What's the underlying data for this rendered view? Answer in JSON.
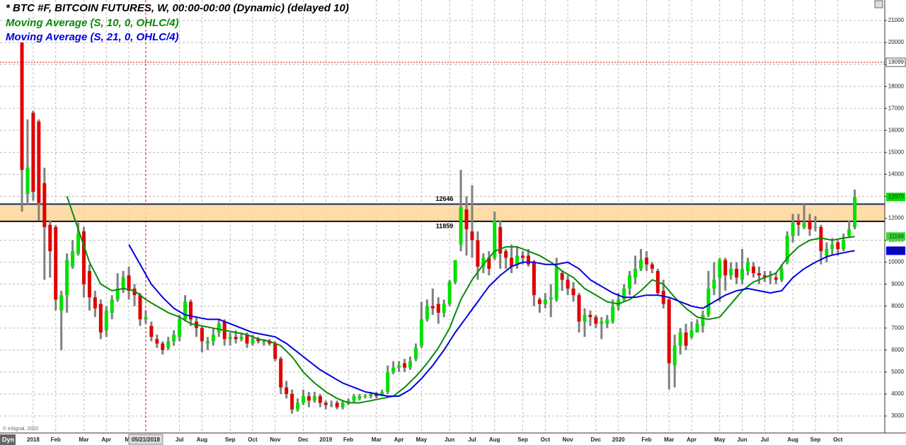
{
  "chart_data": {
    "type": "candlestick",
    "title": "* BTC #F, BITCOIN FUTURES, W, 00:00-00:00 (Dynamic) (delayed 10)",
    "mode_label": "Dyn",
    "watermark": "© eSignal, 2020",
    "rising_color": "#00e000",
    "falling_color": "#e00000",
    "wick_color": "#808080",
    "grid": true,
    "ylim": [
      2227,
      21934
    ],
    "yticks": [
      3000,
      4000,
      5000,
      6000,
      7000,
      8000,
      9000,
      10000,
      11000,
      12000,
      13000,
      14000,
      15000,
      16000,
      17000,
      18000,
      19000,
      20000,
      21000
    ],
    "zone": [
      12646,
      11859
    ],
    "zone_color": "#ffd699",
    "marker_line": 19099,
    "marker_category": "05/21/2018",
    "marker_color": "#e00000",
    "categories": [
      null,
      null,
      "2018",
      null,
      null,
      null,
      "Feb",
      null,
      null,
      null,
      null,
      "Mar",
      null,
      null,
      null,
      "Apr",
      null,
      null,
      null,
      "Ma",
      null,
      null,
      "05/21/2018",
      null,
      null,
      null,
      null,
      null,
      "Jul",
      null,
      null,
      null,
      "Aug",
      null,
      null,
      null,
      null,
      "Sep",
      null,
      null,
      null,
      "Oct",
      null,
      null,
      null,
      "Nov",
      null,
      null,
      null,
      null,
      "Dec",
      null,
      null,
      null,
      "2019",
      null,
      null,
      null,
      "Feb",
      null,
      null,
      null,
      null,
      "Mar",
      null,
      null,
      null,
      "Apr",
      null,
      null,
      null,
      "May",
      null,
      null,
      null,
      null,
      "Jun",
      null,
      null,
      null,
      "Jul",
      null,
      null,
      null,
      "Aug",
      null,
      null,
      null,
      null,
      "Sep",
      null,
      null,
      null,
      "Oct",
      null,
      null,
      null,
      "Nov",
      null,
      null,
      null,
      null,
      "Dec",
      null,
      null,
      null,
      "2020",
      null,
      null,
      null,
      null,
      "Feb",
      null,
      null,
      null,
      "Mar",
      null,
      null,
      null,
      "Apr",
      null,
      null,
      null,
      null,
      "May",
      null,
      null,
      null,
      "Jun",
      null,
      null,
      null,
      "Jul",
      null,
      null,
      null,
      null,
      "Aug",
      null,
      null,
      null,
      "Sep",
      null,
      null,
      null,
      "Oct",
      null,
      null,
      null
    ],
    "candles": [
      [
        20000,
        20000,
        12300,
        14200
      ],
      [
        13100,
        16500,
        12600,
        14300
      ],
      [
        16800,
        16900,
        12800,
        13200
      ],
      [
        16400,
        16500,
        11900,
        12700
      ],
      [
        13600,
        14300,
        9200,
        11600
      ],
      [
        11700,
        11900,
        9300,
        10500
      ],
      [
        11600,
        11700,
        7800,
        8300
      ],
      [
        7800,
        8700,
        6000,
        8500
      ],
      [
        8500,
        10400,
        7700,
        10100
      ],
      [
        9800,
        11000,
        9700,
        10500
      ],
      [
        10400,
        11800,
        10300,
        11300
      ],
      [
        11400,
        11600,
        8400,
        9000
      ],
      [
        9600,
        9900,
        7800,
        8400
      ],
      [
        8400,
        8700,
        7500,
        7900
      ],
      [
        8100,
        8300,
        6500,
        6800
      ],
      [
        6900,
        8000,
        6600,
        7800
      ],
      [
        7700,
        8500,
        7400,
        8300
      ],
      [
        8300,
        9500,
        8200,
        8800
      ],
      [
        8800,
        9600,
        8600,
        9300
      ],
      [
        9400,
        9800,
        8300,
        8700
      ],
      [
        8800,
        9000,
        8000,
        8500
      ],
      [
        8500,
        8600,
        7100,
        7400
      ],
      [
        7400,
        7800,
        7200,
        7500
      ],
      [
        7100,
        7300,
        6400,
        6600
      ],
      [
        6500,
        6700,
        6100,
        6300
      ],
      [
        6300,
        6400,
        5800,
        6000
      ],
      [
        6100,
        6600,
        6000,
        6400
      ],
      [
        6400,
        6900,
        6200,
        6700
      ],
      [
        6600,
        7600,
        6400,
        7400
      ],
      [
        7400,
        8500,
        7300,
        8200
      ],
      [
        8200,
        8300,
        7100,
        7400
      ],
      [
        7300,
        7500,
        6600,
        7000
      ],
      [
        7000,
        7100,
        5900,
        6400
      ],
      [
        6300,
        6600,
        6000,
        6400
      ],
      [
        6400,
        7000,
        6200,
        6700
      ],
      [
        6800,
        7400,
        6600,
        7200
      ],
      [
        7300,
        7400,
        6200,
        6500
      ],
      [
        6500,
        6800,
        6200,
        6600
      ],
      [
        6600,
        6900,
        6300,
        6500
      ],
      [
        6500,
        6800,
        6400,
        6600
      ],
      [
        6700,
        6800,
        6100,
        6300
      ],
      [
        6300,
        6700,
        6200,
        6500
      ],
      [
        6500,
        6600,
        6300,
        6400
      ],
      [
        6400,
        6500,
        6200,
        6400
      ],
      [
        6400,
        6500,
        6200,
        6300
      ],
      [
        6300,
        6400,
        5500,
        5600
      ],
      [
        5600,
        5700,
        4000,
        4300
      ],
      [
        4300,
        4600,
        3800,
        4000
      ],
      [
        4000,
        4200,
        3100,
        3300
      ],
      [
        3300,
        3800,
        3200,
        3600
      ],
      [
        3600,
        4200,
        3500,
        3900
      ],
      [
        3900,
        4100,
        3400,
        3700
      ],
      [
        3700,
        4100,
        3600,
        3900
      ],
      [
        3900,
        4000,
        3400,
        3600
      ],
      [
        3600,
        3700,
        3300,
        3500
      ],
      [
        3500,
        3700,
        3400,
        3500
      ],
      [
        3600,
        3700,
        3300,
        3400
      ],
      [
        3400,
        3700,
        3300,
        3600
      ],
      [
        3600,
        3800,
        3500,
        3700
      ],
      [
        3700,
        4000,
        3600,
        3900
      ],
      [
        3800,
        4000,
        3700,
        3900
      ],
      [
        3900,
        4000,
        3800,
        3900
      ],
      [
        3900,
        4100,
        3800,
        4000
      ],
      [
        4000,
        4100,
        3800,
        3900
      ],
      [
        3900,
        4200,
        3900,
        4100
      ],
      [
        4100,
        5300,
        4000,
        5000
      ],
      [
        5000,
        5500,
        4900,
        5200
      ],
      [
        5200,
        5500,
        5000,
        5300
      ],
      [
        5400,
        5600,
        5000,
        5200
      ],
      [
        5200,
        5700,
        5100,
        5500
      ],
      [
        5600,
        6300,
        5500,
        6100
      ],
      [
        6200,
        8200,
        6100,
        7400
      ],
      [
        7400,
        8300,
        7300,
        8000
      ],
      [
        8000,
        8800,
        7600,
        7900
      ],
      [
        8100,
        8400,
        7200,
        7700
      ],
      [
        7700,
        8300,
        7500,
        8100
      ],
      [
        8100,
        9200,
        8000,
        9100
      ],
      [
        9100,
        10100,
        9000,
        10100
      ],
      [
        10800,
        14200,
        10500,
        12500
      ],
      [
        12400,
        13000,
        10300,
        11500
      ],
      [
        11400,
        13500,
        10200,
        11000
      ],
      [
        11000,
        11400,
        9200,
        9800
      ],
      [
        9800,
        10400,
        9500,
        10200
      ],
      [
        10200,
        10500,
        9400,
        9700
      ],
      [
        10200,
        12300,
        10100,
        11900
      ],
      [
        11600,
        11900,
        9700,
        10400
      ],
      [
        10500,
        10600,
        9700,
        10200
      ],
      [
        10200,
        10800,
        9500,
        9800
      ],
      [
        9900,
        10700,
        9700,
        10300
      ],
      [
        10300,
        10500,
        9900,
        10200
      ],
      [
        10300,
        10600,
        9800,
        9900
      ],
      [
        10000,
        10100,
        8000,
        8500
      ],
      [
        8300,
        8400,
        7700,
        8100
      ],
      [
        8100,
        8600,
        7900,
        8300
      ],
      [
        8300,
        9000,
        7500,
        8400
      ],
      [
        8300,
        10200,
        8200,
        9800
      ],
      [
        9500,
        9600,
        8700,
        9200
      ],
      [
        9200,
        9400,
        8500,
        8800
      ],
      [
        8800,
        9100,
        8200,
        8500
      ],
      [
        8500,
        8600,
        6800,
        7300
      ],
      [
        7300,
        7900,
        6600,
        7600
      ],
      [
        7600,
        7800,
        7100,
        7500
      ],
      [
        7500,
        7600,
        7000,
        7200
      ],
      [
        7200,
        7500,
        6500,
        7300
      ],
      [
        7200,
        7600,
        7000,
        7400
      ],
      [
        7300,
        8300,
        7200,
        8000
      ],
      [
        8000,
        8600,
        7800,
        8300
      ],
      [
        8300,
        9000,
        8200,
        8800
      ],
      [
        8800,
        9600,
        8500,
        9400
      ],
      [
        9300,
        10300,
        9000,
        9700
      ],
      [
        9700,
        10600,
        9600,
        10100
      ],
      [
        10200,
        10500,
        9600,
        9900
      ],
      [
        9900,
        10000,
        9500,
        9700
      ],
      [
        9600,
        9700,
        8500,
        8600
      ],
      [
        8700,
        9200,
        7900,
        8100
      ],
      [
        8300,
        8400,
        4200,
        5400
      ],
      [
        5300,
        6700,
        4300,
        6200
      ],
      [
        6200,
        7000,
        5800,
        6800
      ],
      [
        6800,
        7200,
        6000,
        6200
      ],
      [
        6600,
        7300,
        6500,
        6900
      ],
      [
        6800,
        7400,
        6900,
        7200
      ],
      [
        7100,
        7800,
        6800,
        7600
      ],
      [
        7600,
        9600,
        7500,
        8800
      ],
      [
        8800,
        10000,
        8500,
        9200
      ],
      [
        9300,
        10200,
        8200,
        10100
      ],
      [
        10100,
        10200,
        8700,
        9400
      ],
      [
        9400,
        10000,
        9200,
        9700
      ],
      [
        9700,
        10000,
        9000,
        9300
      ],
      [
        9200,
        10600,
        9000,
        9700
      ],
      [
        9600,
        10200,
        9400,
        10000
      ],
      [
        9800,
        10000,
        9300,
        9500
      ],
      [
        9500,
        9800,
        9000,
        9400
      ],
      [
        9400,
        9600,
        9100,
        9300
      ],
      [
        9300,
        9600,
        9000,
        9300
      ],
      [
        9300,
        9500,
        9000,
        9200
      ],
      [
        9200,
        9900,
        9100,
        9700
      ],
      [
        10000,
        11400,
        9900,
        11200
      ],
      [
        11200,
        12200,
        10900,
        11800
      ],
      [
        11900,
        12200,
        11200,
        11700
      ],
      [
        11600,
        12700,
        11500,
        11800
      ],
      [
        11900,
        12200,
        11200,
        11500
      ],
      [
        11600,
        12100,
        11400,
        11600
      ],
      [
        11600,
        11700,
        9900,
        10500
      ],
      [
        10300,
        10900,
        10000,
        10600
      ],
      [
        10600,
        11100,
        10300,
        10800
      ],
      [
        10900,
        11000,
        10300,
        10600
      ],
      [
        10600,
        11300,
        10500,
        11000
      ],
      [
        11200,
        11900,
        11100,
        11500
      ],
      [
        11600,
        13300,
        11500,
        12970
      ]
    ],
    "series": [
      {
        "name": "Moving Average (S, 10, 0, OHLC/4)",
        "color": "#0a8a0a",
        "label_bg": "#33dd33",
        "values": [
          null,
          null,
          null,
          null,
          null,
          null,
          null,
          null,
          13000,
          12250,
          11500,
          10750,
          10000,
          9500,
          9000,
          8850,
          8700,
          8750,
          8800,
          8750,
          8700,
          8500,
          8300,
          8150,
          8000,
          7850,
          7700,
          7600,
          7500,
          7350,
          7200,
          7150,
          7100,
          7050,
          7000,
          6950,
          6900,
          6850,
          6800,
          6750,
          6700,
          6600,
          6500,
          6450,
          6400,
          6300,
          6200,
          5950,
          5700,
          5350,
          5000,
          4750,
          4500,
          4300,
          4100,
          3950,
          3800,
          3700,
          3600,
          3600,
          3600,
          3650,
          3700,
          3750,
          3800,
          3850,
          3900,
          4100,
          4300,
          4550,
          4800,
          5100,
          5400,
          5750,
          6100,
          6550,
          7000,
          7650,
          8300,
          8750,
          9200,
          9550,
          9900,
          10200,
          10500,
          10600,
          10700,
          10700,
          10700,
          10600,
          10500,
          10400,
          10300,
          10150,
          10000,
          9800,
          9600,
          9450,
          9300,
          9050,
          8800,
          8650,
          8500,
          8350,
          8200,
          8150,
          8100,
          8200,
          8300,
          8500,
          8700,
          8950,
          9200,
          9100,
          9000,
          8700,
          8400,
          8150,
          7900,
          7700,
          7500,
          7450,
          7400,
          7450,
          7500,
          7800,
          8100,
          8400,
          8700,
          8900,
          9100,
          9200,
          9300,
          9400,
          9500,
          9850,
          10200,
          10450,
          10700,
          10850,
          11000,
          11050,
          11100,
          11050,
          11000,
          11050,
          11100,
          11130,
          11169
        ]
      },
      {
        "name": "Moving Average (S, 21, 0, OHLC/4)",
        "color": "#0000dd",
        "label_bg": "#0000dd",
        "values": [
          null,
          null,
          null,
          null,
          null,
          null,
          null,
          null,
          null,
          null,
          null,
          null,
          null,
          null,
          null,
          null,
          null,
          null,
          null,
          10800,
          10350,
          9900,
          9450,
          9000,
          8700,
          8400,
          8150,
          7900,
          7750,
          7600,
          7550,
          7500,
          7450,
          7400,
          7400,
          7400,
          7300,
          7200,
          7100,
          7000,
          6900,
          6800,
          6750,
          6700,
          6650,
          6600,
          6450,
          6300,
          6100,
          5900,
          5700,
          5500,
          5300,
          5100,
          4950,
          4800,
          4650,
          4500,
          4400,
          4300,
          4200,
          4100,
          4050,
          4000,
          3950,
          3900,
          3900,
          3900,
          4050,
          4200,
          4450,
          4700,
          5000,
          5300,
          5650,
          6000,
          6400,
          6800,
          7150,
          7500,
          7850,
          8200,
          8550,
          8900,
          9150,
          9400,
          9600,
          9800,
          9900,
          10000,
          10000,
          10000,
          9950,
          9900,
          9900,
          9900,
          9950,
          10000,
          9850,
          9700,
          9450,
          9200,
          9050,
          8900,
          8750,
          8600,
          8500,
          8400,
          8400,
          8400,
          8450,
          8500,
          8500,
          8500,
          8450,
          8400,
          8300,
          8200,
          8100,
          8000,
          7950,
          7900,
          8050,
          8200,
          8350,
          8500,
          8600,
          8700,
          8750,
          8800,
          8750,
          8700,
          8650,
          8600,
          8650,
          8700,
          9000,
          9300,
          9500,
          9700,
          9850,
          10000,
          10120,
          10250,
          10320,
          10380,
          10430,
          10480,
          10522
        ]
      }
    ]
  }
}
